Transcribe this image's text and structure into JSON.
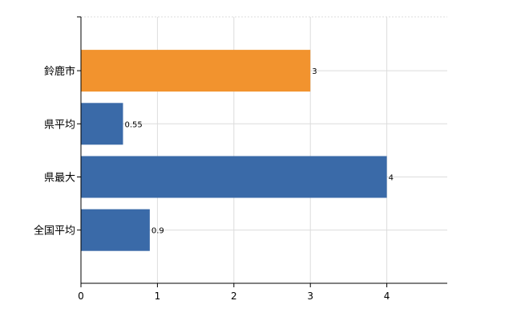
{
  "chart_data": {
    "type": "bar",
    "orientation": "horizontal",
    "categories": [
      "鈴鹿市",
      "県平均",
      "県最大",
      "全国平均"
    ],
    "values": [
      3,
      0.55,
      4,
      0.9
    ],
    "data_labels": [
      "3",
      "0.55",
      "4",
      "0.9"
    ],
    "bar_colors": [
      "#f2932e",
      "#3a6aa8",
      "#3a6aa8",
      "#3a6aa8"
    ],
    "xlim": [
      0,
      4.8
    ],
    "xticks": [
      0,
      1,
      2,
      3,
      4
    ],
    "xtick_labels": [
      "0",
      "1",
      "2",
      "3",
      "4"
    ],
    "grid": true,
    "legend": "none"
  }
}
